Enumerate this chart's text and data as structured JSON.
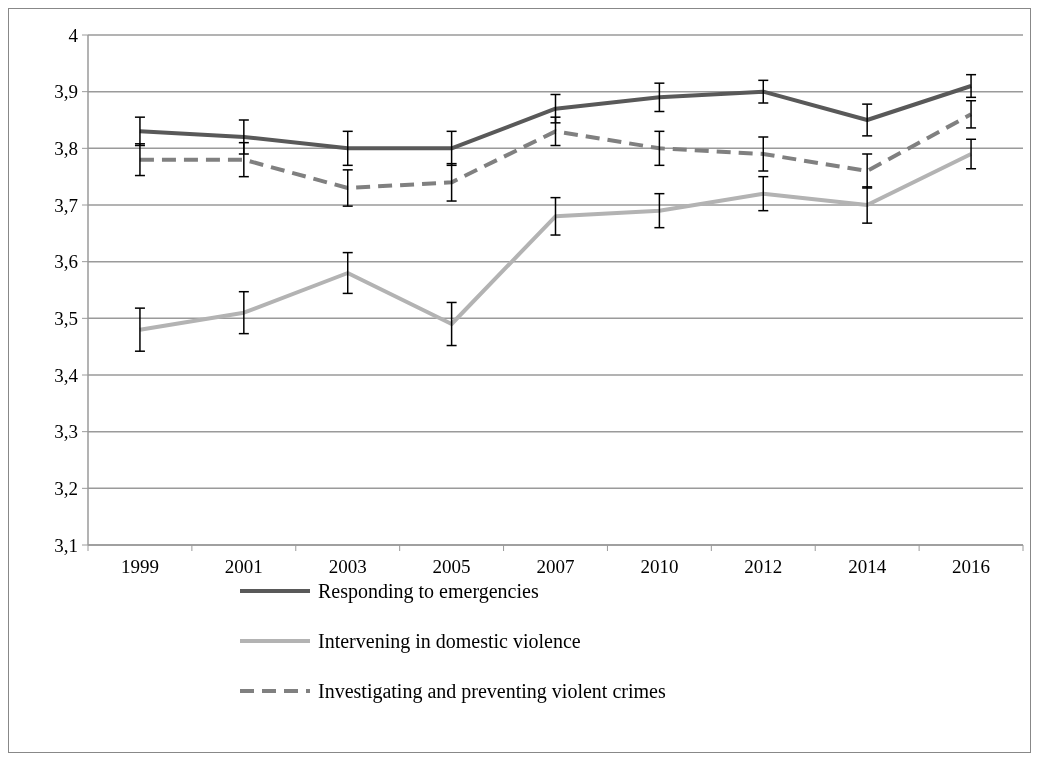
{
  "chart_data": {
    "type": "line",
    "categories": [
      "1999",
      "2001",
      "2003",
      "2005",
      "2007",
      "2010",
      "2012",
      "2014",
      "2016"
    ],
    "ylim": [
      3.1,
      4
    ],
    "yticks": [
      {
        "value": 3.1,
        "label": "3,1"
      },
      {
        "value": 3.2,
        "label": "3,2"
      },
      {
        "value": 3.3,
        "label": "3,3"
      },
      {
        "value": 3.4,
        "label": "3,4"
      },
      {
        "value": 3.5,
        "label": "3,5"
      },
      {
        "value": 3.6,
        "label": "3,6"
      },
      {
        "value": 3.7,
        "label": "3,7"
      },
      {
        "value": 3.8,
        "label": "3,8"
      },
      {
        "value": 3.9,
        "label": "3,9"
      },
      4
    ],
    "grid": "y",
    "legend": "bottom",
    "marker": "none",
    "series": [
      {
        "name": "Responding to emergencies",
        "color": "#595959",
        "line_style": "solid",
        "values": [
          3.83,
          3.82,
          3.8,
          3.8,
          3.87,
          3.89,
          3.9,
          3.85,
          3.91
        ],
        "errors": [
          0.025,
          0.03,
          0.03,
          0.03,
          0.025,
          0.025,
          0.02,
          0.028,
          0.02
        ]
      },
      {
        "name": "Intervening in domestic violence",
        "color": "#b3b3b3",
        "line_style": "solid",
        "values": [
          3.48,
          3.51,
          3.58,
          3.49,
          3.68,
          3.69,
          3.72,
          3.7,
          3.79
        ],
        "errors": [
          0.038,
          0.037,
          0.036,
          0.038,
          0.033,
          0.03,
          0.03,
          0.032,
          0.026
        ]
      },
      {
        "name": "Investigating and preventing violent crimes",
        "color": "#808080",
        "line_style": "dashed",
        "values": [
          3.78,
          3.78,
          3.73,
          3.74,
          3.83,
          3.8,
          3.79,
          3.76,
          3.86
        ],
        "errors": [
          0.028,
          0.03,
          0.032,
          0.033,
          0.025,
          0.03,
          0.03,
          0.03,
          0.024
        ]
      }
    ]
  }
}
